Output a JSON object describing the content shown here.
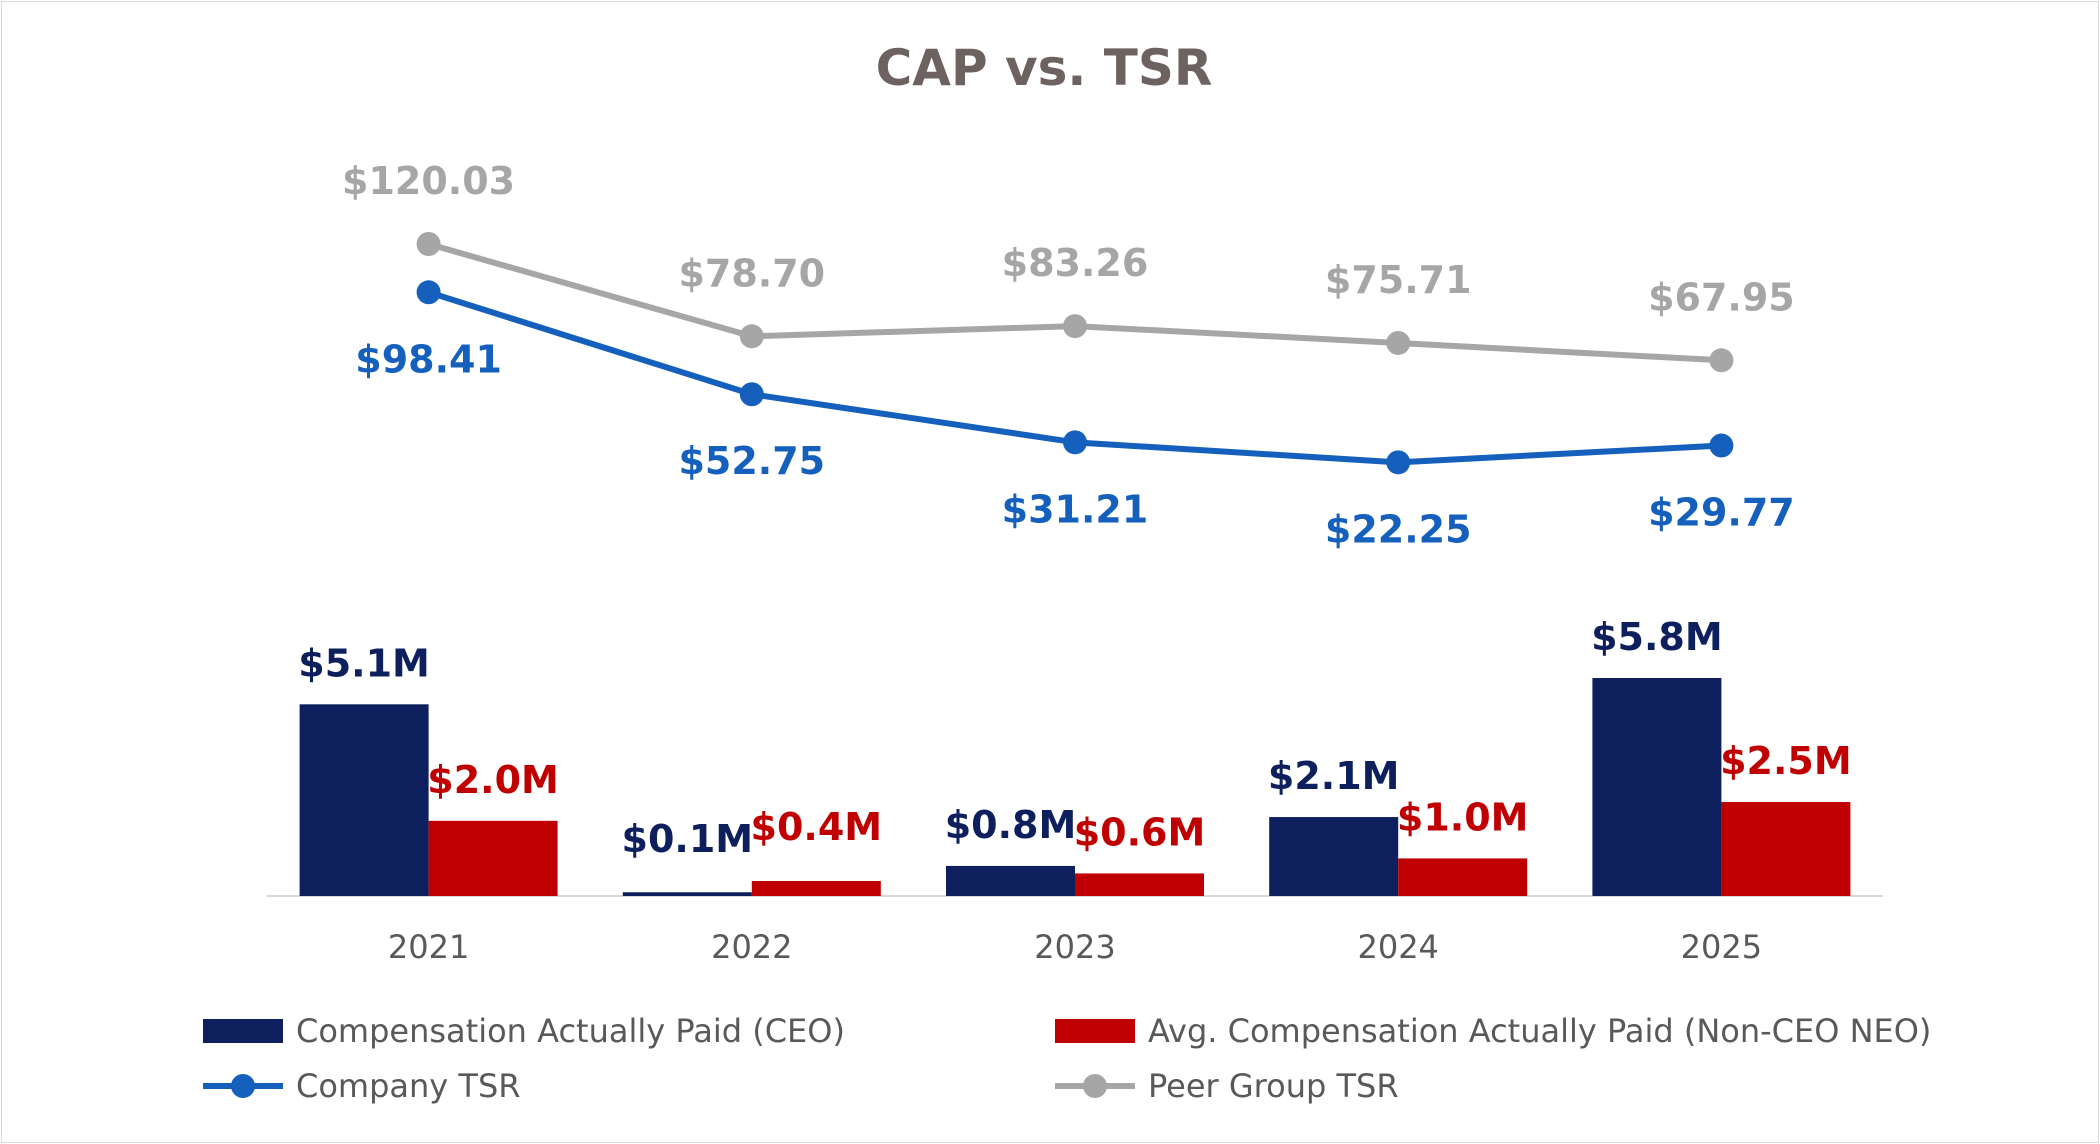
{
  "chart_data": {
    "type": "bar+line",
    "title": "CAP vs. TSR",
    "categories": [
      "2021",
      "2022",
      "2023",
      "2024",
      "2025"
    ],
    "bar_series": [
      {
        "name": "Compensation Actually Paid (CEO)",
        "values": [
          5.1,
          0.1,
          0.8,
          2.1,
          5.8
        ],
        "labels": [
          "$5.1M",
          "$0.1M",
          "$0.8M",
          "$2.1M",
          "$5.8M"
        ],
        "color": "#0d1f5c",
        "label_color": "#0d1f5c"
      },
      {
        "name": "Avg. Compensation Actually Paid (Non-CEO NEO)",
        "values": [
          2.0,
          0.4,
          0.6,
          1.0,
          2.5
        ],
        "labels": [
          "$2.0M",
          "$0.4M",
          "$0.6M",
          "$1.0M",
          "$2.5M"
        ],
        "color": "#c00000",
        "label_color": "#c00000"
      }
    ],
    "line_series": [
      {
        "name": "Company TSR",
        "values": [
          98.41,
          52.75,
          31.21,
          22.25,
          29.77
        ],
        "labels": [
          "$98.41",
          "$52.75",
          "$31.21",
          "$22.25",
          "$29.77"
        ],
        "color": "#1560bd",
        "label_color": "#1560bd"
      },
      {
        "name": "Peer Group TSR",
        "values": [
          120.03,
          78.7,
          83.26,
          75.71,
          67.95
        ],
        "labels": [
          "$120.03",
          "$78.70",
          "$83.26",
          "$75.71",
          "$67.95"
        ],
        "color": "#a6a6a6",
        "label_color": "#a6a6a6"
      }
    ],
    "bar_axis_unit": "$M",
    "line_axis_unit": "$",
    "grid": false,
    "legend_position": "bottom",
    "title_color": "#6e6260",
    "tick_color": "#595959",
    "legend_text_color": "#595959",
    "axis_color": "#d9d9d9"
  }
}
